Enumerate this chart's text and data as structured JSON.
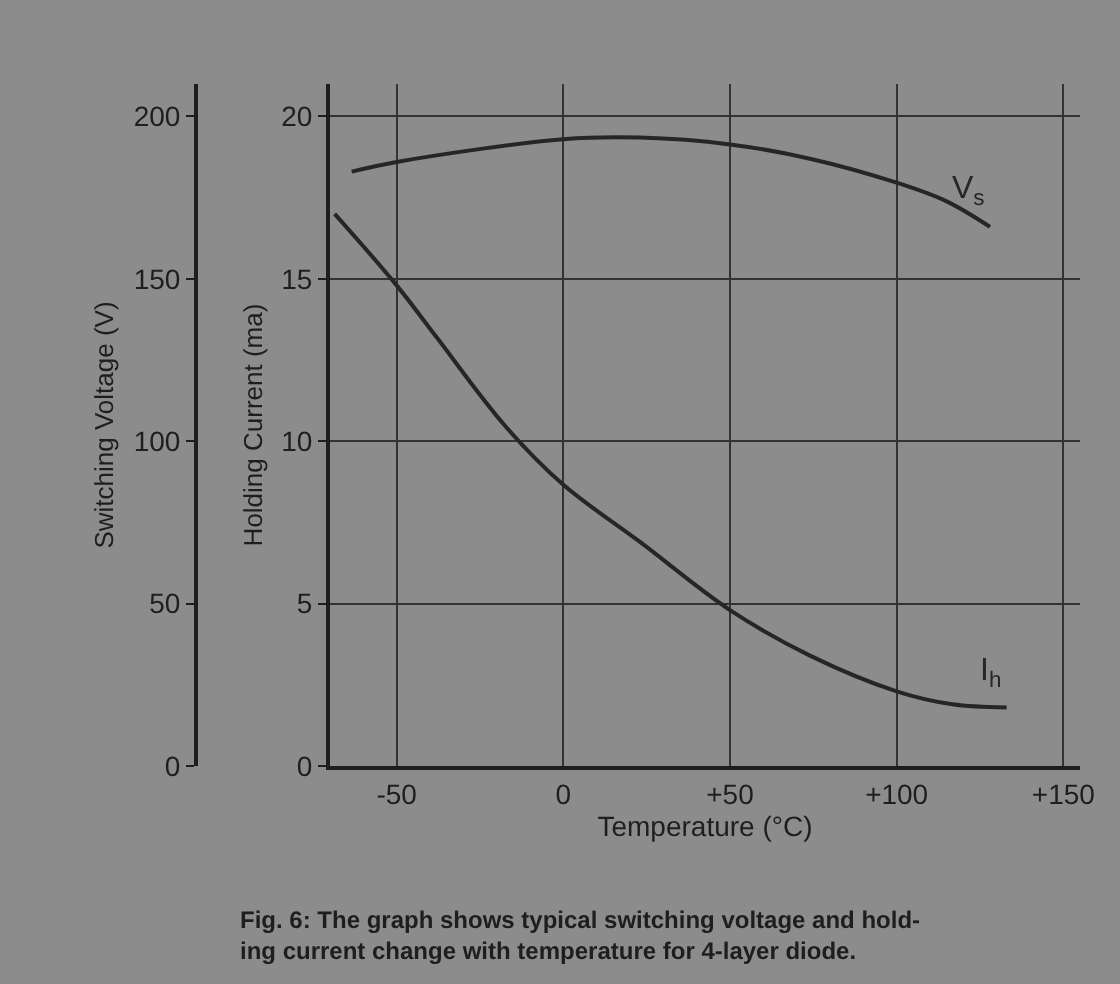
{
  "chart_data": {
    "type": "line",
    "xlabel": "Temperature (°C)",
    "ylabel": "Holding Current (ma)",
    "y2label": "Switching Voltage (V)",
    "xlim": [
      -70,
      155
    ],
    "xticks": [
      -50,
      0,
      {
        "value": 50,
        "label": "+50"
      },
      {
        "value": 100,
        "label": "+100"
      },
      {
        "value": 150,
        "label": "+150"
      }
    ],
    "ylim": [
      0,
      21
    ],
    "yticks": [
      0,
      5,
      10,
      15,
      20
    ],
    "y2lim": [
      0,
      210
    ],
    "y2ticks": [
      0,
      50,
      100,
      150,
      200
    ],
    "grid": true,
    "legend": false,
    "marker": "none",
    "line_style": "solid",
    "series": [
      {
        "name": "V$_{s}$",
        "color": "#262626",
        "axis": "y2",
        "x": [
          -63.5,
          -50,
          0,
          23,
          50,
          74,
          100,
          114.7,
          128
        ],
        "values": [
          183,
          186,
          193,
          193.5,
          191.4,
          187,
          179.6,
          174,
          166
        ]
      },
      {
        "name": "I$_{h}$",
        "color": "#262626",
        "x": [
          -68.6,
          -50,
          -38,
          -17.7,
          0,
          23,
          50,
          74,
          100,
          116.7,
          133
        ],
        "values": [
          17.0,
          14.8,
          13.2,
          10.5,
          8.66,
          6.9,
          4.8,
          3.4,
          2.3,
          1.9,
          1.8
        ]
      }
    ],
    "annotations": [
      "Fig. 6: The graph shows typical switching voltage and hold-\ning current change with temperature for 4-layer diode."
    ]
  }
}
